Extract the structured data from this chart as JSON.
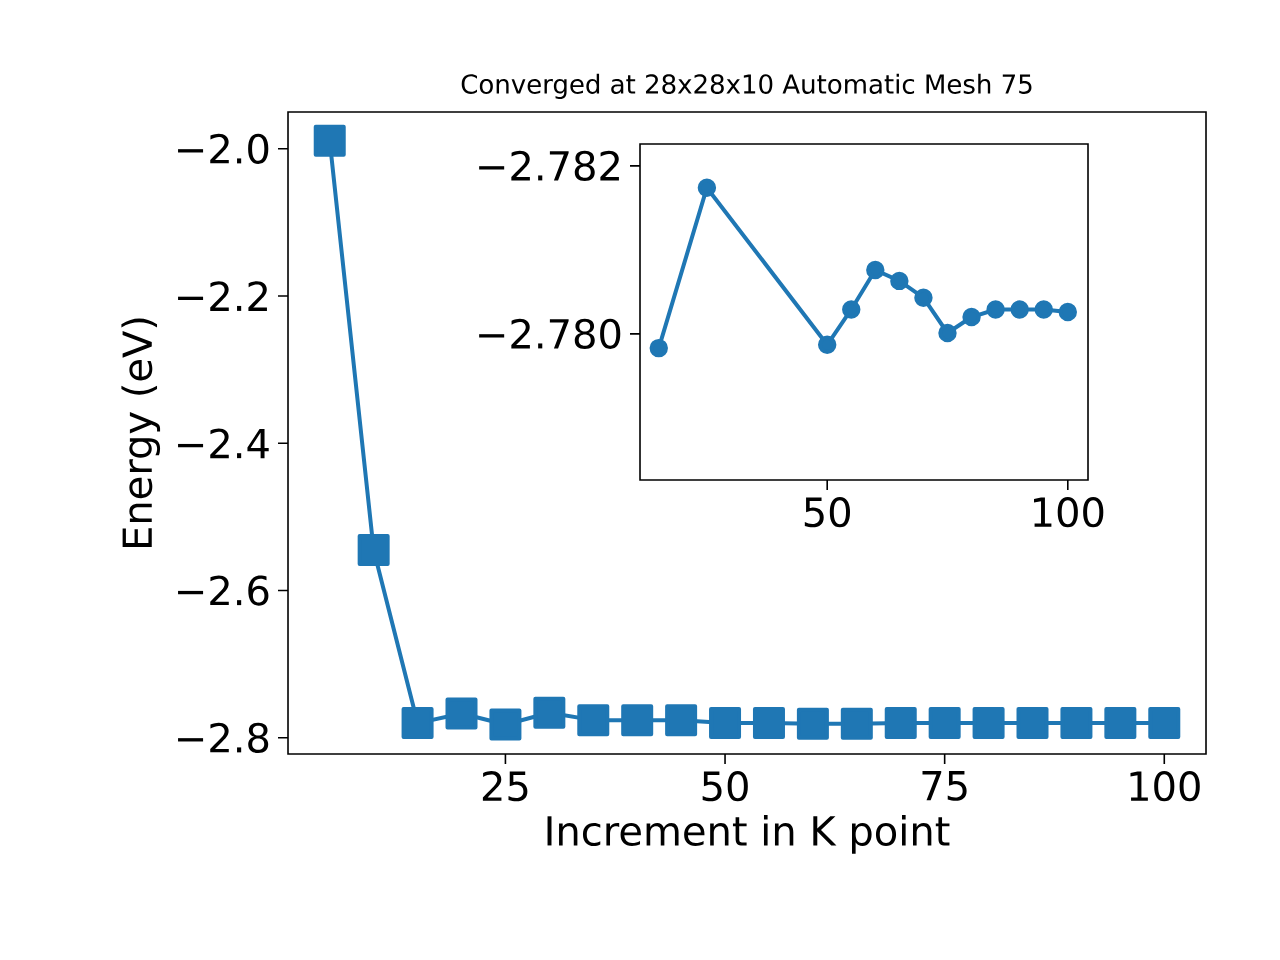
{
  "chart_data": [
    {
      "type": "line",
      "title": "Converged at 28x28x10 Automatic Mesh 75",
      "xlabel": "Increment in K point",
      "ylabel": "Energy (eV)",
      "x": [
        5,
        10,
        15,
        20,
        25,
        30,
        35,
        40,
        45,
        50,
        55,
        60,
        65,
        70,
        75,
        80,
        85,
        90,
        95,
        100
      ],
      "series": [
        {
          "color": "#1f77b4",
          "values": [
            -1.989,
            -2.545,
            -2.78,
            -2.767,
            -2.782,
            -2.766,
            -2.776,
            -2.776,
            -2.776,
            -2.78,
            -2.78,
            -2.781,
            -2.781,
            -2.78,
            -2.78,
            -2.78,
            -2.78,
            -2.78,
            -2.78,
            -2.78
          ]
        }
      ],
      "marker": "square",
      "line_style": "solid",
      "xlim": [
        0.25,
        104.75
      ],
      "ylim": [
        -2.822,
        -1.95
      ],
      "xticks": [
        25,
        50,
        75,
        100
      ],
      "yticks": [
        {
          "value": -2.0,
          "label": "−2.0"
        },
        {
          "value": -2.2,
          "label": "−2.2"
        },
        {
          "value": -2.4,
          "label": "−2.4"
        },
        {
          "value": -2.6,
          "label": "−2.6"
        },
        {
          "value": -2.8,
          "label": "−2.8"
        }
      ]
    },
    {
      "type": "line",
      "x": [
        15,
        25,
        50,
        55,
        60,
        65,
        70,
        75,
        80,
        85,
        90,
        95,
        100
      ],
      "series": [
        {
          "color": "#1f77b4",
          "values": [
            -2.77983,
            -2.78174,
            -2.77987,
            -2.78029,
            -2.78076,
            -2.78063,
            -2.78043,
            -2.78001,
            -2.7802,
            -2.78029,
            -2.78029,
            -2.78029,
            -2.78026
          ]
        }
      ],
      "marker": "circle",
      "line_style": "solid",
      "xlim": [
        11.1,
        104.2
      ],
      "ylim": [
        -2.77826,
        -2.78226
      ],
      "xticks": [
        50,
        100
      ],
      "yticks": [
        {
          "value": -2.782,
          "label": "−2.782"
        },
        {
          "value": -2.78,
          "label": "−2.780"
        }
      ]
    }
  ]
}
